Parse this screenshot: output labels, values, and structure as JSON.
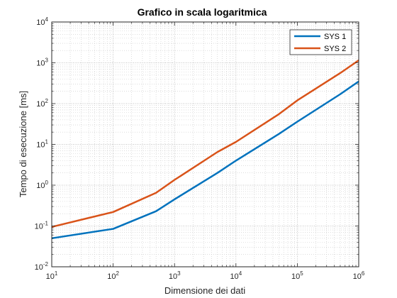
{
  "chart_data": {
    "type": "line",
    "title": "Grafico in scala logaritmica",
    "xlabel": "Dimensione dei dati",
    "ylabel": "Tempo di esecuzione [ms]",
    "xscale": "log",
    "yscale": "log",
    "xlim": [
      10,
      1000000
    ],
    "ylim": [
      0.01,
      10000
    ],
    "grid": true,
    "minor_grid": true,
    "legend_position": "top-right",
    "x_ticks": [
      {
        "value": 10,
        "base": "10",
        "exp": "1"
      },
      {
        "value": 100,
        "base": "10",
        "exp": "2"
      },
      {
        "value": 1000,
        "base": "10",
        "exp": "3"
      },
      {
        "value": 10000,
        "base": "10",
        "exp": "4"
      },
      {
        "value": 100000,
        "base": "10",
        "exp": "5"
      },
      {
        "value": 1000000,
        "base": "10",
        "exp": "6"
      }
    ],
    "y_ticks": [
      {
        "value": 0.01,
        "base": "10",
        "exp": "-2"
      },
      {
        "value": 0.1,
        "base": "10",
        "exp": "-1"
      },
      {
        "value": 1,
        "base": "10",
        "exp": "0"
      },
      {
        "value": 10,
        "base": "10",
        "exp": "1"
      },
      {
        "value": 100,
        "base": "10",
        "exp": "2"
      },
      {
        "value": 1000,
        "base": "10",
        "exp": "3"
      },
      {
        "value": 10000,
        "base": "10",
        "exp": "4"
      }
    ],
    "series": [
      {
        "name": "SYS 1",
        "color": "#0072BD",
        "x": [
          10,
          100,
          500,
          1000,
          5000,
          10000,
          50000,
          100000,
          500000,
          1000000
        ],
        "y": [
          0.05,
          0.085,
          0.23,
          0.45,
          2.0,
          4.0,
          18,
          36,
          170,
          350
        ]
      },
      {
        "name": "SYS 2",
        "color": "#D95319",
        "x": [
          10,
          100,
          500,
          1000,
          5000,
          10000,
          50000,
          100000,
          500000,
          1000000
        ],
        "y": [
          0.095,
          0.22,
          0.65,
          1.35,
          6.5,
          11.5,
          55,
          120,
          560,
          1150
        ]
      }
    ]
  }
}
